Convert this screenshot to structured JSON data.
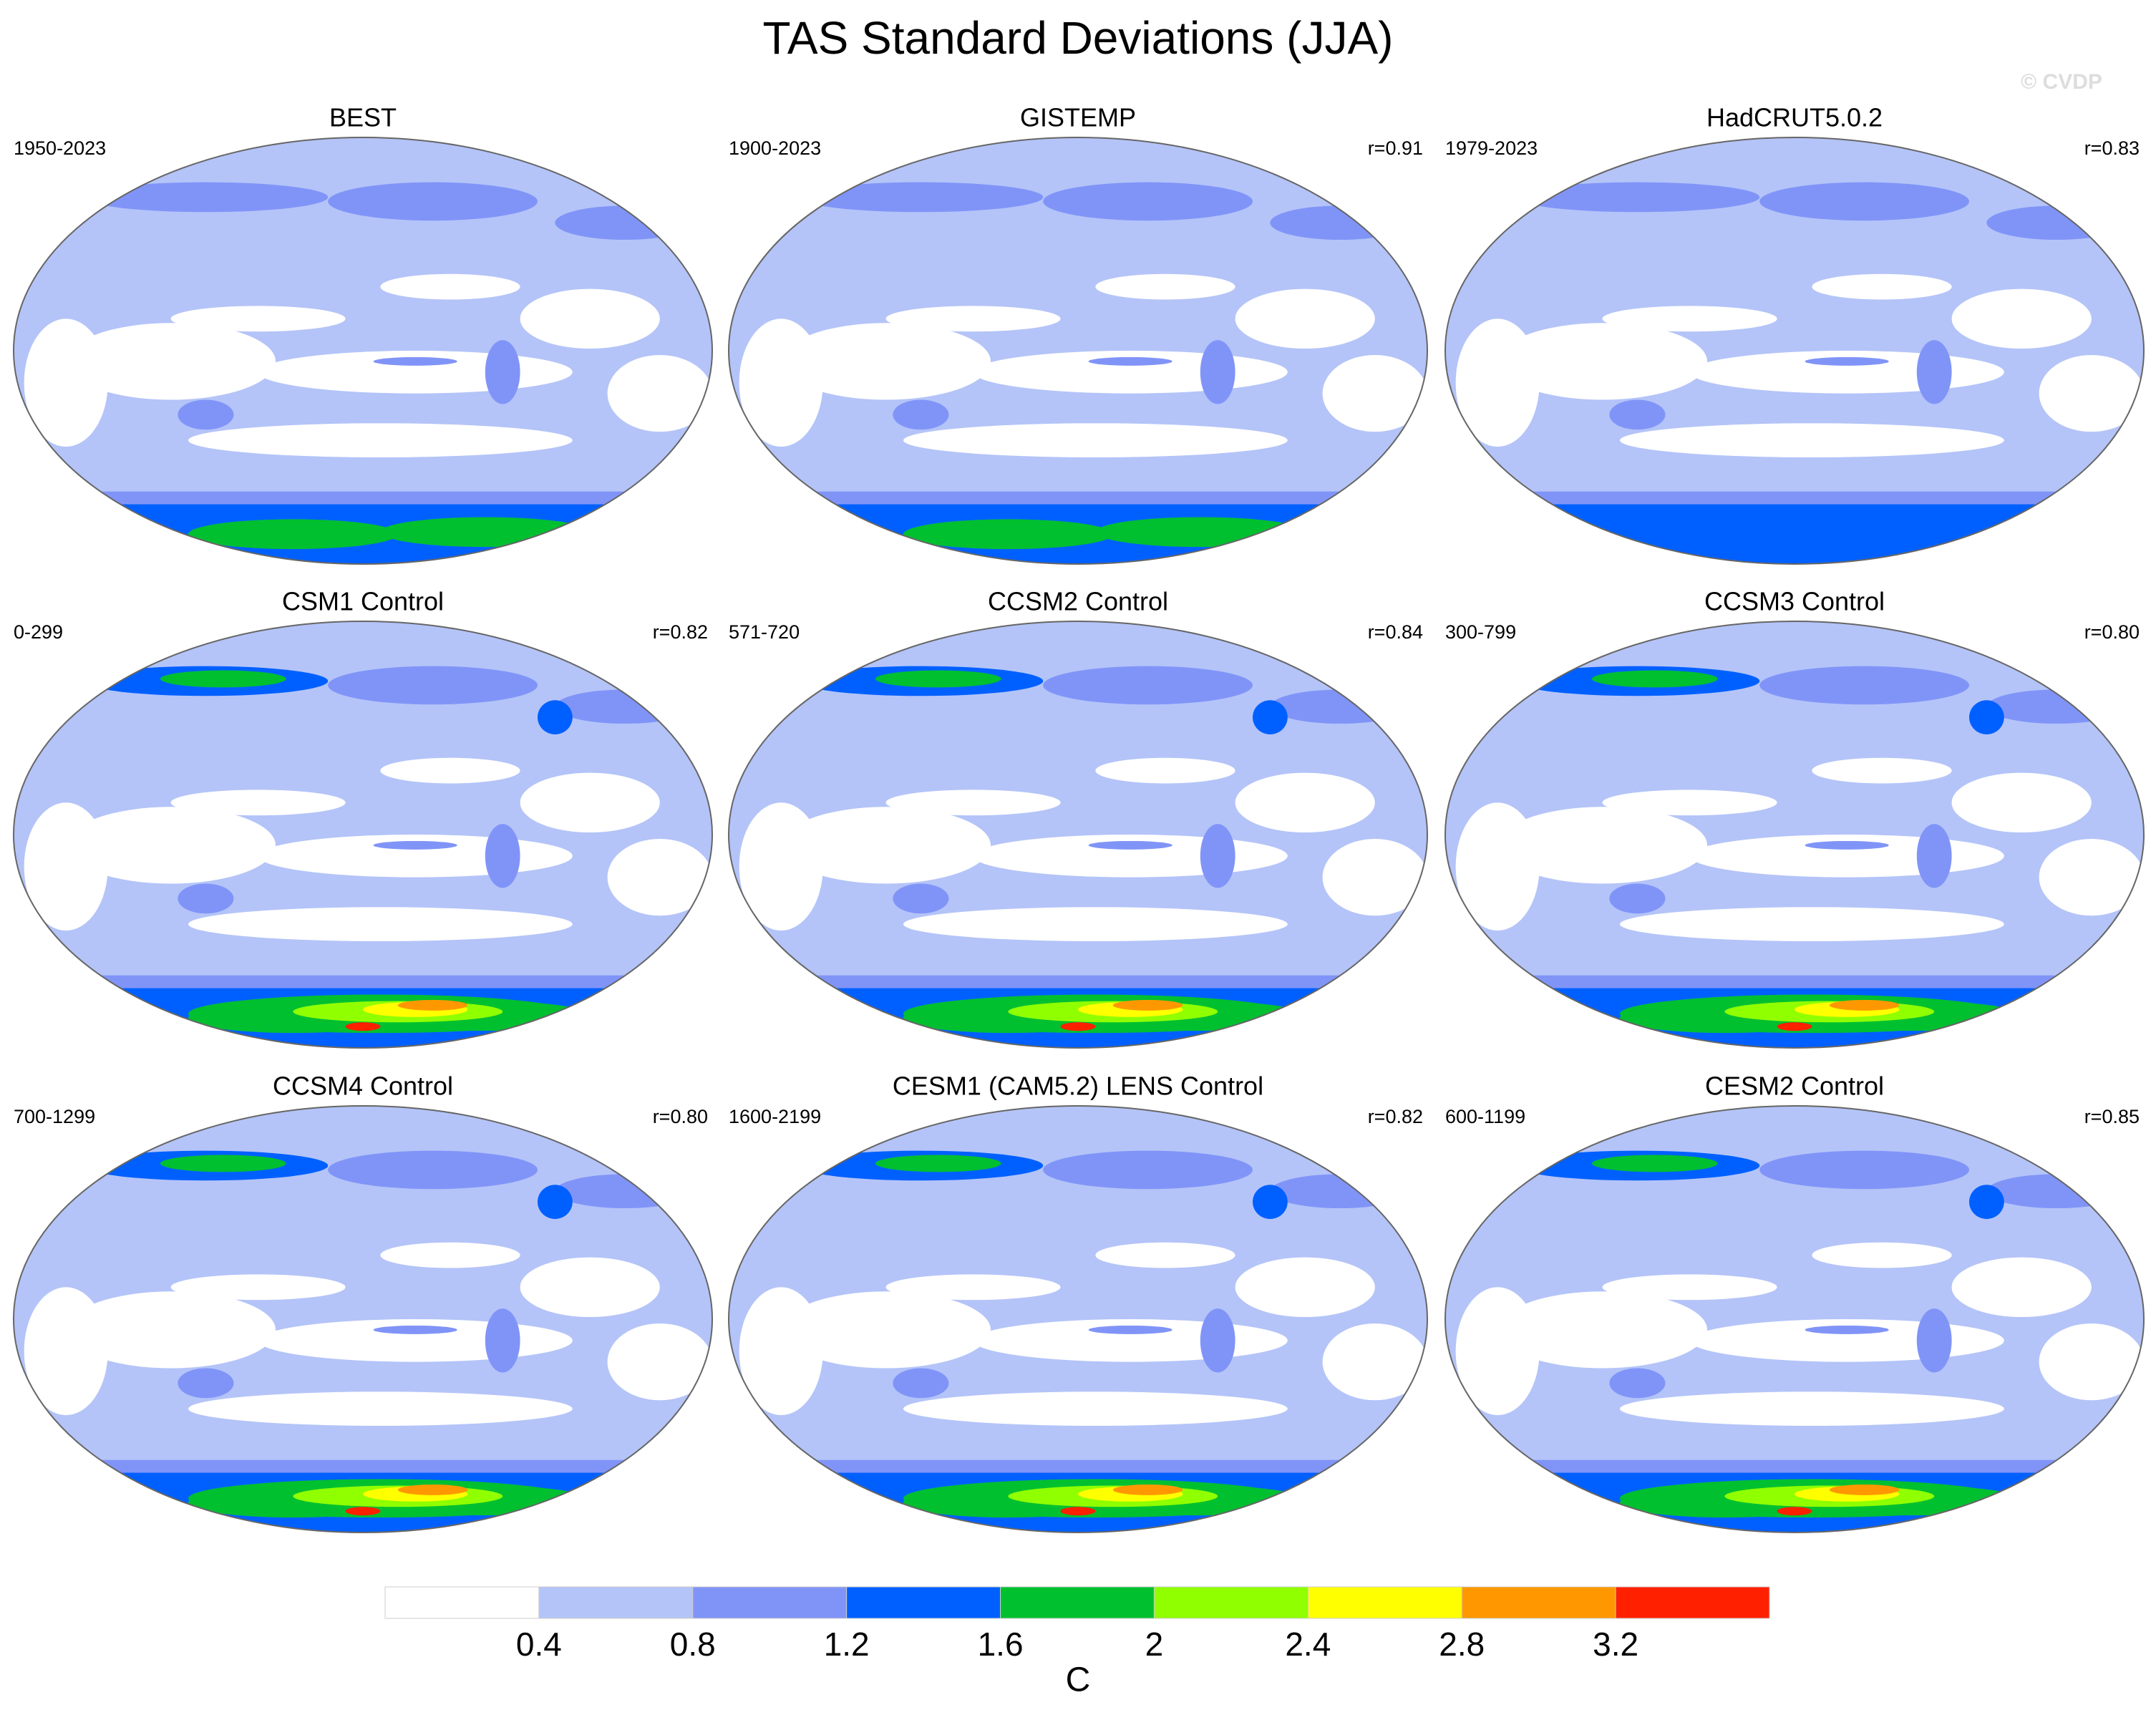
{
  "title": "TAS Standard Deviations (JJA)",
  "watermark": "© CVDP",
  "panels": [
    {
      "title": "BEST",
      "period": "1950-2023"
    },
    {
      "title": "GISTEMP",
      "period": "1900-2023",
      "r": "r=0.91"
    },
    {
      "title": "HadCRUT5.0.2",
      "period": "1979-2023",
      "r": "r=0.83"
    },
    {
      "title": "CSM1 Control",
      "period": "0-299",
      "r": "r=0.82"
    },
    {
      "title": "CCSM2 Control",
      "period": "571-720",
      "r": "r=0.84"
    },
    {
      "title": "CCSM3 Control",
      "period": "300-799",
      "r": "r=0.80"
    },
    {
      "title": "CCSM4 Control",
      "period": "700-1299",
      "r": "r=0.80"
    },
    {
      "title": "CESM1 (CAM5.2) LENS Control",
      "period": "1600-2199",
      "r": "r=0.82"
    },
    {
      "title": "CESM2 Control",
      "period": "600-1199",
      "r": "r=0.85"
    }
  ],
  "colorbar": {
    "colors": [
      "#ffffff",
      "#b4c4f8",
      "#8094f8",
      "#0060ff",
      "#00c030",
      "#90ff00",
      "#ffff00",
      "#ff9800",
      "#ff2000"
    ],
    "ticks": [
      0.4,
      0.8,
      1.2,
      1.6,
      2,
      2.4,
      2.8,
      3.2
    ],
    "label": "C"
  }
}
